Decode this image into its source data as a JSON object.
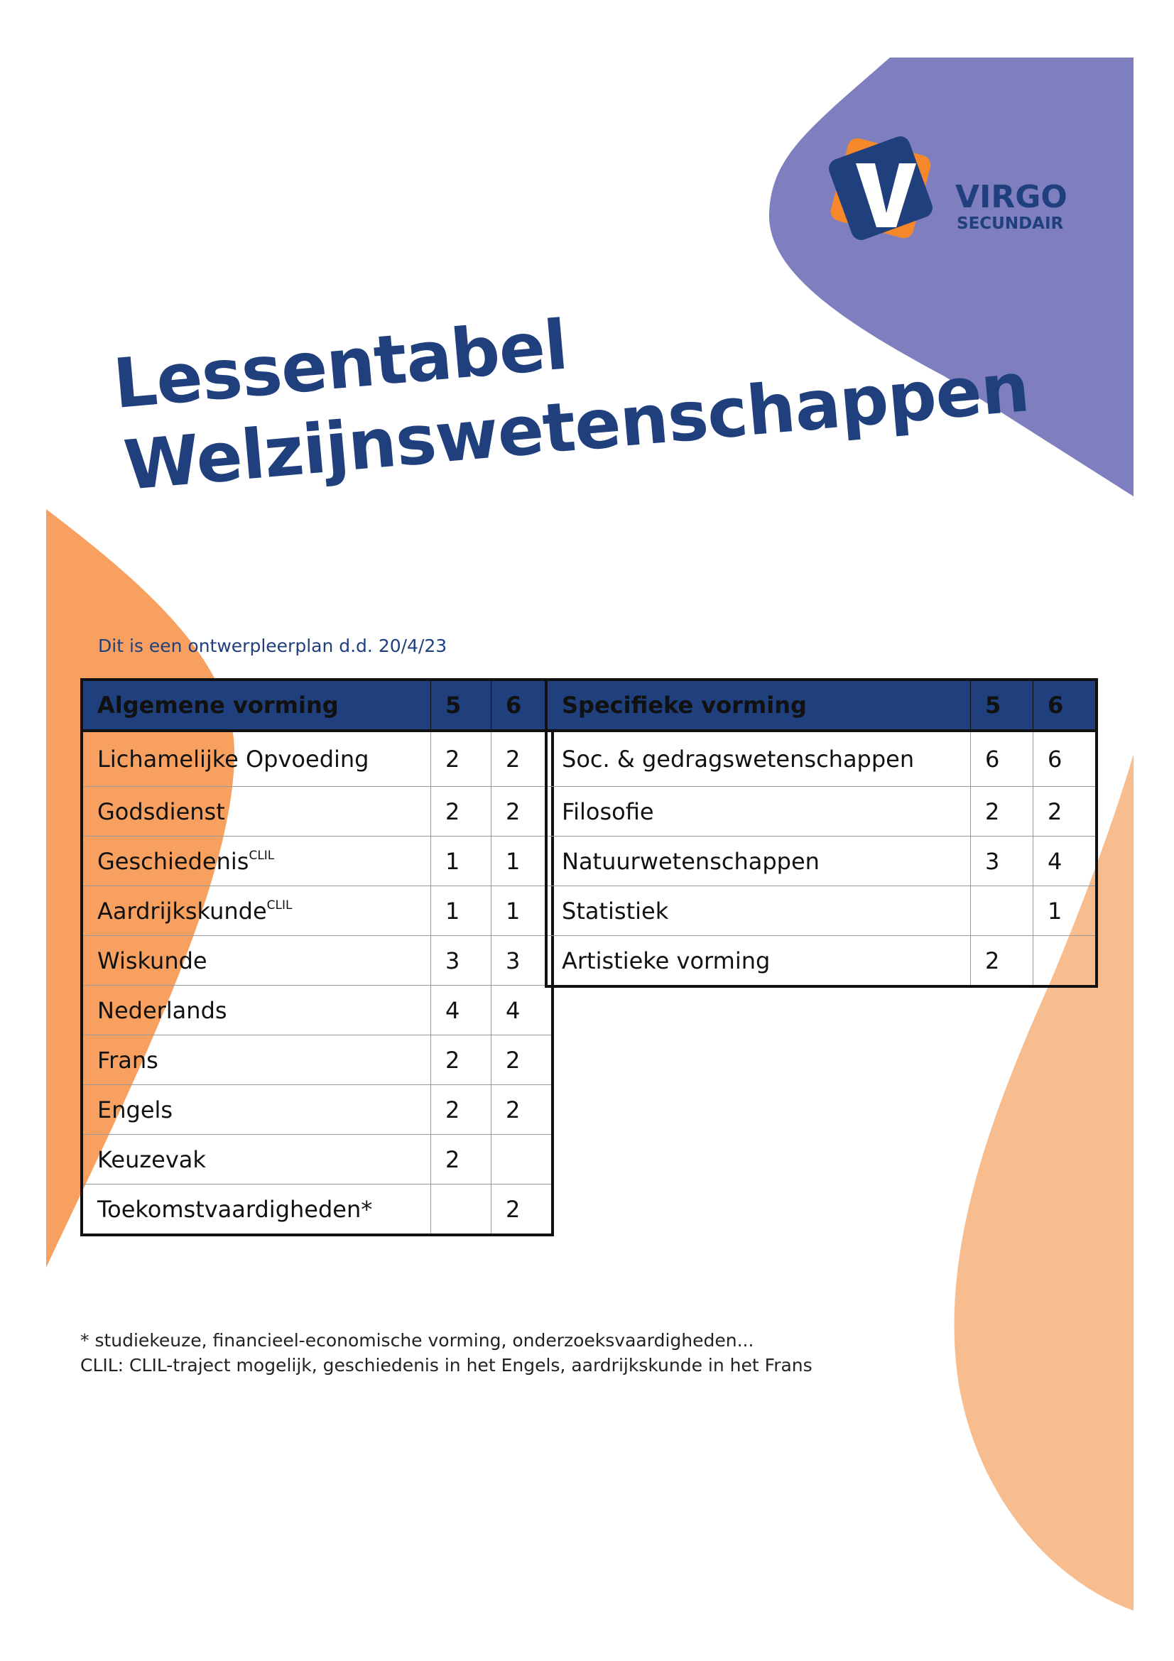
{
  "logo": {
    "name": "VIRGO",
    "tagline": "SECUNDAIR"
  },
  "title": {
    "line1": "Lessentabel",
    "line2": "Welzijnswetenschappen"
  },
  "subtitle": "Dit is een ontwerpleerplan d.d. 20/4/23",
  "tables": [
    {
      "header": [
        "Algemene vorming",
        "5",
        "6"
      ],
      "rows": [
        {
          "subject": "Lichamelijke Opvoeding",
          "y5": 2,
          "y6": 2
        },
        {
          "subject": "Godsdienst",
          "y5": 2,
          "y6": 2
        },
        {
          "subject": "Geschiedenis",
          "sup": "CLIL",
          "y5": 1,
          "y6": 1
        },
        {
          "subject": "Aardrijkskunde",
          "sup": "CLIL",
          "y5": 1,
          "y6": 1
        },
        {
          "subject": "Wiskunde",
          "y5": 3,
          "y6": 3
        },
        {
          "subject": "Nederlands",
          "y5": 4,
          "y6": 4
        },
        {
          "subject": "Frans",
          "y5": 2,
          "y6": 2
        },
        {
          "subject": "Engels",
          "y5": 2,
          "y6": 2
        },
        {
          "subject": "Keuzevak",
          "y5": 2,
          "y6": null
        },
        {
          "subject": "Toekomstvaardigheden*",
          "y5": null,
          "y6": 2
        }
      ]
    },
    {
      "header": [
        "Specifieke vorming",
        "5",
        "6"
      ],
      "rows": [
        {
          "subject": "Soc. & gedragswetenschappen",
          "y5": 6,
          "y6": 6
        },
        {
          "subject": "Filosofie",
          "y5": 2,
          "y6": 2
        },
        {
          "subject": "Natuurwetenschappen",
          "y5": 3,
          "y6": 4
        },
        {
          "subject": "Statistiek",
          "y5": null,
          "y6": 1
        },
        {
          "subject": "Artistieke vorming",
          "y5": 2,
          "y6": null
        }
      ]
    }
  ],
  "footnotes": [
    "* studiekeuze, financieel-economische vorming, onderzoeksvaardigheden...",
    "CLIL: CLIL-traject mogelijk, geschiedenis in het Engels, aardrijkskunde in het Frans"
  ]
}
